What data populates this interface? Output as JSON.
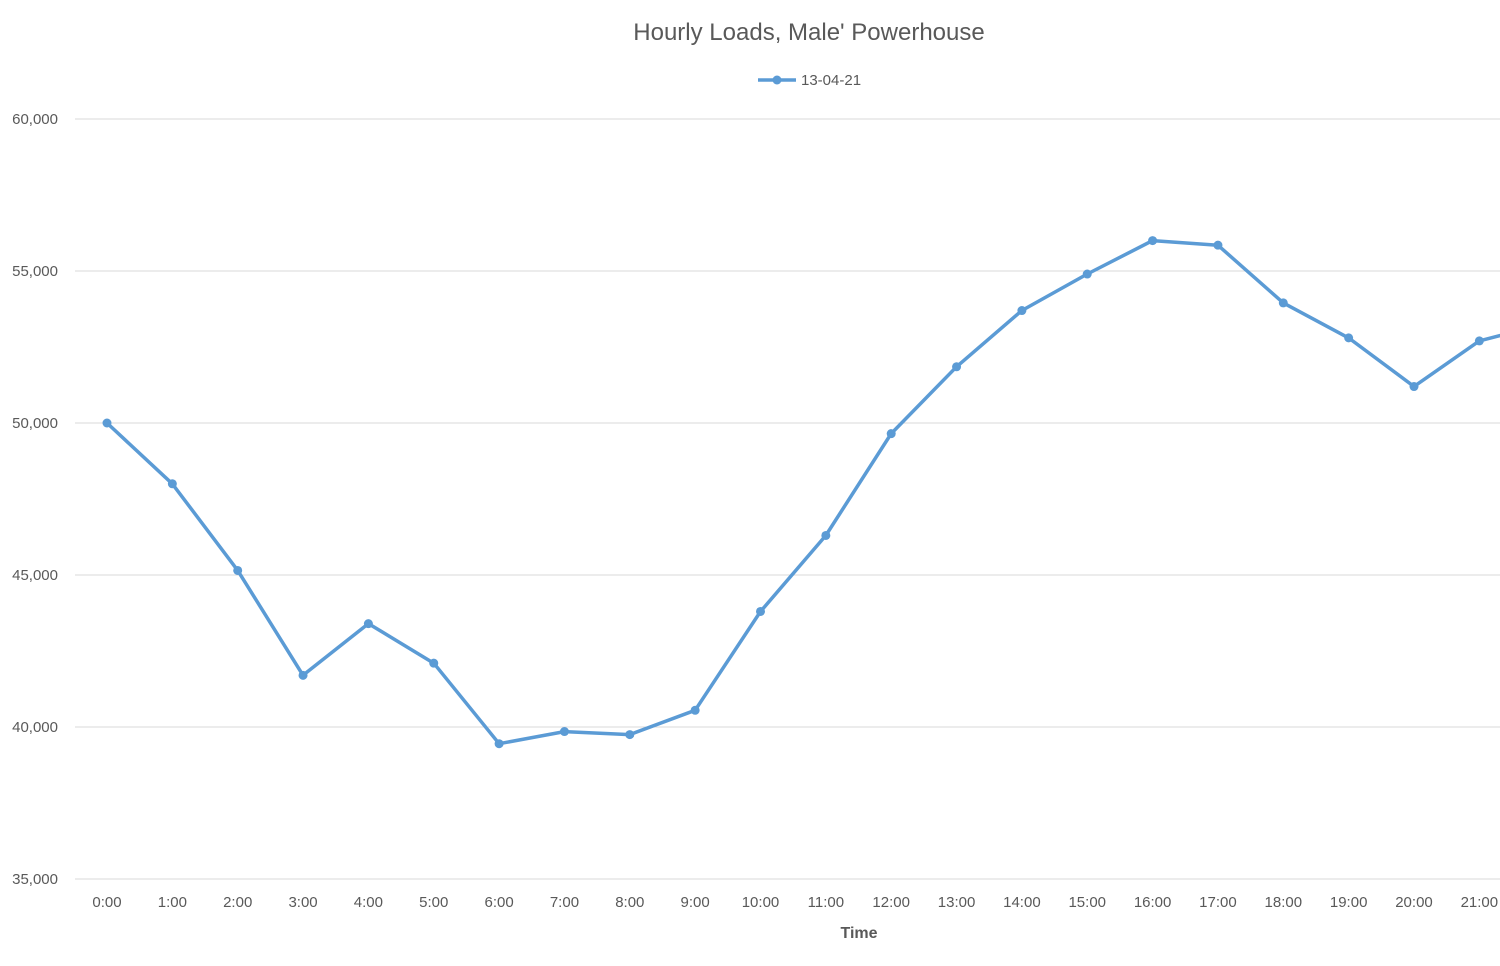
{
  "chart_data": {
    "type": "line",
    "title": "Hourly Loads, Male' Powerhouse",
    "xlabel": "Time",
    "ylabel": "",
    "categories": [
      "0:00",
      "1:00",
      "2:00",
      "3:00",
      "4:00",
      "5:00",
      "6:00",
      "7:00",
      "8:00",
      "9:00",
      "10:00",
      "11:00",
      "12:00",
      "13:00",
      "14:00",
      "15:00",
      "16:00",
      "17:00",
      "18:00",
      "19:00",
      "20:00",
      "21:00"
    ],
    "series": [
      {
        "name": "13-04-21",
        "values": [
          50000,
          48000,
          45150,
          41700,
          43400,
          42100,
          39450,
          39850,
          39750,
          40550,
          43800,
          46300,
          49650,
          51850,
          53700,
          54900,
          56000,
          55850,
          53950,
          52800,
          51200,
          52700
        ],
        "color": "#5b9bd5"
      }
    ],
    "series_continues_to": 53250,
    "ylim": [
      35000,
      60000
    ],
    "yticks": [
      35000,
      40000,
      45000,
      50000,
      55000,
      60000
    ],
    "ytick_labels": [
      "35,000",
      "40,000",
      "45,000",
      "50,000",
      "55,000",
      "60,000"
    ],
    "grid": true,
    "legend_position": "top"
  }
}
